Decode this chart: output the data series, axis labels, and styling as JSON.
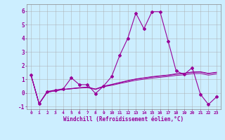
{
  "xlabel": "Windchill (Refroidissement éolien,°C)",
  "background_color": "#cceeff",
  "grid_color": "#aaaaaa",
  "line_color": "#990099",
  "x_hours": [
    0,
    1,
    2,
    3,
    4,
    5,
    6,
    7,
    8,
    9,
    10,
    11,
    12,
    13,
    14,
    15,
    16,
    17,
    18,
    19,
    20,
    21,
    22,
    23
  ],
  "y_main": [
    1.3,
    -0.8,
    0.1,
    0.2,
    0.3,
    1.1,
    0.6,
    0.6,
    -0.05,
    0.5,
    1.2,
    2.75,
    4.0,
    5.85,
    4.7,
    5.95,
    5.95,
    3.8,
    1.6,
    1.35,
    1.85,
    -0.1,
    -0.85,
    -0.3
  ],
  "y_trend1": [
    1.3,
    -0.8,
    0.05,
    0.15,
    0.25,
    0.3,
    0.35,
    0.38,
    0.25,
    0.45,
    0.55,
    0.68,
    0.8,
    0.92,
    1.0,
    1.08,
    1.14,
    1.2,
    1.28,
    1.32,
    1.4,
    1.42,
    1.3,
    1.38
  ],
  "y_trend2": [
    1.3,
    -0.8,
    0.05,
    0.15,
    0.25,
    0.3,
    0.37,
    0.4,
    0.27,
    0.47,
    0.6,
    0.74,
    0.87,
    1.0,
    1.08,
    1.16,
    1.22,
    1.28,
    1.37,
    1.41,
    1.5,
    1.52,
    1.4,
    1.48
  ],
  "y_trend3": [
    1.3,
    -0.8,
    0.05,
    0.15,
    0.25,
    0.32,
    0.38,
    0.42,
    0.28,
    0.49,
    0.62,
    0.76,
    0.9,
    1.02,
    1.1,
    1.19,
    1.25,
    1.31,
    1.4,
    1.44,
    1.53,
    1.55,
    1.43,
    1.51
  ],
  "ylim": [
    -1.2,
    6.5
  ],
  "xlim": [
    -0.5,
    23.5
  ],
  "figsize": [
    3.2,
    2.0
  ],
  "dpi": 100
}
